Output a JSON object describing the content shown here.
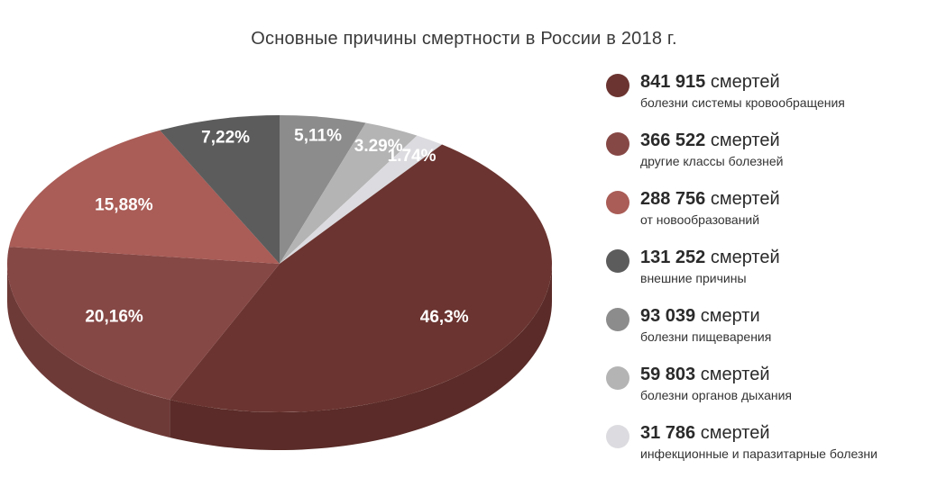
{
  "chart_data": {
    "type": "pie",
    "title": "Основные причины смертности в России в 2018 г.",
    "slices": [
      {
        "label": "46,3%",
        "value": 46.3,
        "count": "841 915",
        "unit": "смертей",
        "cause": "болезни системы кровообращения",
        "color": "#6b3430",
        "side": "#5a2b28"
      },
      {
        "label": "20,16%",
        "value": 20.16,
        "count": "366 522",
        "unit": "смертей",
        "cause": "другие классы болезней",
        "color": "#864845",
        "side": "#6e3a37"
      },
      {
        "label": "15,88%",
        "value": 15.88,
        "count": "288 756",
        "unit": "смертей",
        "cause": "от новообразований",
        "color": "#aa5c56",
        "side": "#8c4a45"
      },
      {
        "label": "7,22%",
        "value": 7.22,
        "count": "131 252",
        "unit": "смертей",
        "cause": "внешние причины",
        "color": "#5c5c5c",
        "side": "#4a4a4a"
      },
      {
        "label": "5,11%",
        "value": 5.11,
        "count": "93 039",
        "unit": "смерти",
        "cause": "болезни пищеварения",
        "color": "#8c8c8c",
        "side": "#747474"
      },
      {
        "label": "3.29%",
        "value": 3.29,
        "count": "59 803",
        "unit": "смертей",
        "cause": "болезни органов дыхания",
        "color": "#b4b4b4",
        "side": "#9c9c9c"
      },
      {
        "label": "1.74%",
        "value": 1.74,
        "count": "31 786",
        "unit": "смертей",
        "cause": "инфекционные и паразитарные болезни",
        "color": "#dcdce0",
        "side": "#c4c4c8"
      }
    ],
    "extra_slice_color": "#7b3c39",
    "legend_position": "right"
  }
}
